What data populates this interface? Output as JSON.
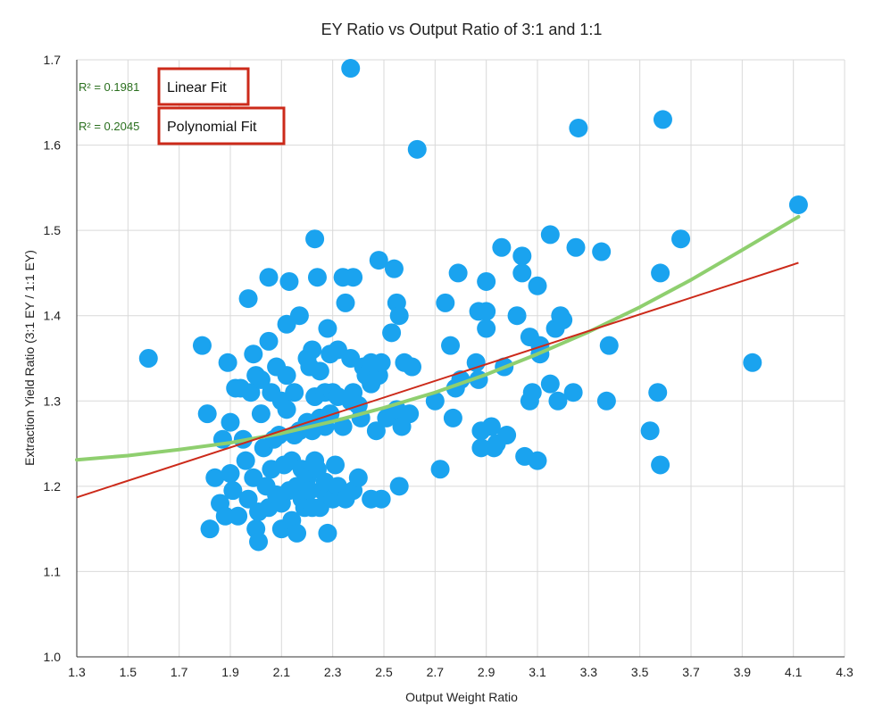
{
  "chart_data": {
    "type": "scatter",
    "title": "EY Ratio vs Output Ratio of 3:1 and 1:1",
    "xlabel": "Output Weight Ratio",
    "ylabel": "Extraction Yield Ratio (3:1 EY / 1:1 EY)",
    "xlim": [
      1.3,
      4.3
    ],
    "ylim": [
      1.0,
      1.7
    ],
    "xticks": [
      "1.3",
      "1.5",
      "1.7",
      "1.9",
      "2.1",
      "2.3",
      "2.5",
      "2.7",
      "2.9",
      "3.1",
      "3.3",
      "3.5",
      "3.7",
      "3.9",
      "4.1",
      "4.3"
    ],
    "yticks": [
      "1.0",
      "1.1",
      "1.2",
      "1.3",
      "1.4",
      "1.5",
      "1.6",
      "1.7"
    ],
    "grid": true,
    "colors": {
      "points": "#1aa3ef",
      "linear_fit": "#cc2a1a",
      "poly_fit": "#8fcf6f",
      "r2_text": "#2a6f1e",
      "box_border": "#cc2a1a"
    },
    "annotations": [
      {
        "r2": "R² = 0.1981",
        "label": "Linear Fit"
      },
      {
        "r2": "R² = 0.2045",
        "label": "Polynomial Fit"
      }
    ],
    "trendlines": {
      "linear": {
        "x": [
          1.3,
          4.12
        ],
        "y": [
          1.187,
          1.462
        ]
      },
      "polynomial": {
        "x": [
          1.3,
          1.5,
          1.7,
          1.9,
          2.1,
          2.3,
          2.5,
          2.7,
          2.9,
          3.1,
          3.3,
          3.5,
          3.7,
          3.9,
          4.12
        ],
        "y": [
          1.231,
          1.236,
          1.243,
          1.251,
          1.262,
          1.276,
          1.292,
          1.31,
          1.331,
          1.355,
          1.381,
          1.41,
          1.442,
          1.477,
          1.516
        ]
      }
    },
    "points": [
      [
        1.58,
        1.35
      ],
      [
        1.79,
        1.365
      ],
      [
        1.81,
        1.285
      ],
      [
        1.82,
        1.15
      ],
      [
        1.84,
        1.21
      ],
      [
        1.86,
        1.18
      ],
      [
        1.87,
        1.255
      ],
      [
        1.88,
        1.165
      ],
      [
        1.89,
        1.345
      ],
      [
        1.9,
        1.275
      ],
      [
        1.9,
        1.215
      ],
      [
        1.91,
        1.195
      ],
      [
        1.92,
        1.315
      ],
      [
        1.93,
        1.165
      ],
      [
        1.94,
        1.315
      ],
      [
        1.95,
        1.255
      ],
      [
        1.96,
        1.23
      ],
      [
        1.97,
        1.42
      ],
      [
        1.97,
        1.185
      ],
      [
        1.98,
        1.31
      ],
      [
        1.99,
        1.355
      ],
      [
        1.99,
        1.21
      ],
      [
        2.0,
        1.33
      ],
      [
        2.0,
        1.15
      ],
      [
        2.01,
        1.17
      ],
      [
        2.01,
        1.135
      ],
      [
        2.02,
        1.285
      ],
      [
        2.02,
        1.325
      ],
      [
        2.03,
        1.245
      ],
      [
        2.04,
        1.2
      ],
      [
        2.05,
        1.445
      ],
      [
        2.05,
        1.37
      ],
      [
        2.05,
        1.175
      ],
      [
        2.06,
        1.31
      ],
      [
        2.06,
        1.22
      ],
      [
        2.07,
        1.255
      ],
      [
        2.08,
        1.34
      ],
      [
        2.08,
        1.19
      ],
      [
        2.09,
        1.26
      ],
      [
        2.1,
        1.3
      ],
      [
        2.1,
        1.18
      ],
      [
        2.1,
        1.15
      ],
      [
        2.11,
        1.225
      ],
      [
        2.12,
        1.39
      ],
      [
        2.12,
        1.33
      ],
      [
        2.12,
        1.29
      ],
      [
        2.13,
        1.44
      ],
      [
        2.13,
        1.195
      ],
      [
        2.14,
        1.23
      ],
      [
        2.14,
        1.16
      ],
      [
        2.15,
        1.31
      ],
      [
        2.15,
        1.26
      ],
      [
        2.16,
        1.2
      ],
      [
        2.16,
        1.145
      ],
      [
        2.17,
        1.4
      ],
      [
        2.17,
        1.265
      ],
      [
        2.18,
        1.185
      ],
      [
        2.18,
        1.22
      ],
      [
        2.19,
        1.175
      ],
      [
        2.2,
        1.35
      ],
      [
        2.2,
        1.275
      ],
      [
        2.2,
        1.21
      ],
      [
        2.21,
        1.34
      ],
      [
        2.21,
        1.195
      ],
      [
        2.22,
        1.36
      ],
      [
        2.22,
        1.265
      ],
      [
        2.22,
        1.175
      ],
      [
        2.23,
        1.49
      ],
      [
        2.23,
        1.305
      ],
      [
        2.23,
        1.23
      ],
      [
        2.24,
        1.445
      ],
      [
        2.24,
        1.22
      ],
      [
        2.25,
        1.335
      ],
      [
        2.25,
        1.28
      ],
      [
        2.25,
        1.175
      ],
      [
        2.26,
        1.195
      ],
      [
        2.27,
        1.31
      ],
      [
        2.27,
        1.27
      ],
      [
        2.27,
        1.205
      ],
      [
        2.28,
        1.385
      ],
      [
        2.28,
        1.145
      ],
      [
        2.29,
        1.355
      ],
      [
        2.29,
        1.285
      ],
      [
        2.3,
        1.31
      ],
      [
        2.3,
        1.185
      ],
      [
        2.31,
        1.225
      ],
      [
        2.32,
        1.36
      ],
      [
        2.32,
        1.305
      ],
      [
        2.32,
        1.2
      ],
      [
        2.34,
        1.445
      ],
      [
        2.34,
        1.27
      ],
      [
        2.35,
        1.415
      ],
      [
        2.35,
        1.185
      ],
      [
        2.37,
        1.69
      ],
      [
        2.37,
        1.35
      ],
      [
        2.37,
        1.3
      ],
      [
        2.38,
        1.445
      ],
      [
        2.38,
        1.31
      ],
      [
        2.38,
        1.195
      ],
      [
        2.4,
        1.295
      ],
      [
        2.4,
        1.21
      ],
      [
        2.41,
        1.28
      ],
      [
        2.42,
        1.34
      ],
      [
        2.43,
        1.33
      ],
      [
        2.45,
        1.32
      ],
      [
        2.45,
        1.345
      ],
      [
        2.45,
        1.185
      ],
      [
        2.47,
        1.265
      ],
      [
        2.48,
        1.465
      ],
      [
        2.48,
        1.33
      ],
      [
        2.49,
        1.345
      ],
      [
        2.49,
        1.185
      ],
      [
        2.51,
        1.28
      ],
      [
        2.53,
        1.38
      ],
      [
        2.53,
        1.285
      ],
      [
        2.54,
        1.455
      ],
      [
        2.55,
        1.415
      ],
      [
        2.55,
        1.29
      ],
      [
        2.56,
        1.4
      ],
      [
        2.56,
        1.2
      ],
      [
        2.57,
        1.27
      ],
      [
        2.58,
        1.345
      ],
      [
        2.6,
        1.285
      ],
      [
        2.61,
        1.34
      ],
      [
        2.63,
        1.595
      ],
      [
        2.7,
        1.3
      ],
      [
        2.72,
        1.22
      ],
      [
        2.74,
        1.415
      ],
      [
        2.76,
        1.365
      ],
      [
        2.77,
        1.28
      ],
      [
        2.78,
        1.315
      ],
      [
        2.79,
        1.45
      ],
      [
        2.8,
        1.325
      ],
      [
        2.86,
        1.345
      ],
      [
        2.87,
        1.405
      ],
      [
        2.87,
        1.325
      ],
      [
        2.88,
        1.245
      ],
      [
        2.88,
        1.265
      ],
      [
        2.9,
        1.44
      ],
      [
        2.9,
        1.405
      ],
      [
        2.9,
        1.385
      ],
      [
        2.92,
        1.27
      ],
      [
        2.93,
        1.245
      ],
      [
        2.94,
        1.25
      ],
      [
        2.96,
        1.48
      ],
      [
        2.97,
        1.34
      ],
      [
        2.98,
        1.26
      ],
      [
        3.02,
        1.4
      ],
      [
        3.04,
        1.47
      ],
      [
        3.04,
        1.45
      ],
      [
        3.05,
        1.235
      ],
      [
        3.07,
        1.375
      ],
      [
        3.07,
        1.3
      ],
      [
        3.08,
        1.31
      ],
      [
        3.1,
        1.435
      ],
      [
        3.1,
        1.23
      ],
      [
        3.11,
        1.355
      ],
      [
        3.11,
        1.365
      ],
      [
        3.15,
        1.495
      ],
      [
        3.15,
        1.32
      ],
      [
        3.17,
        1.385
      ],
      [
        3.18,
        1.3
      ],
      [
        3.19,
        1.4
      ],
      [
        3.2,
        1.395
      ],
      [
        3.24,
        1.31
      ],
      [
        3.25,
        1.48
      ],
      [
        3.26,
        1.62
      ],
      [
        3.35,
        1.475
      ],
      [
        3.37,
        1.3
      ],
      [
        3.38,
        1.365
      ],
      [
        3.54,
        1.265
      ],
      [
        3.57,
        1.31
      ],
      [
        3.58,
        1.225
      ],
      [
        3.58,
        1.45
      ],
      [
        3.59,
        1.63
      ],
      [
        3.66,
        1.49
      ],
      [
        3.94,
        1.345
      ],
      [
        4.12,
        1.53
      ]
    ]
  }
}
